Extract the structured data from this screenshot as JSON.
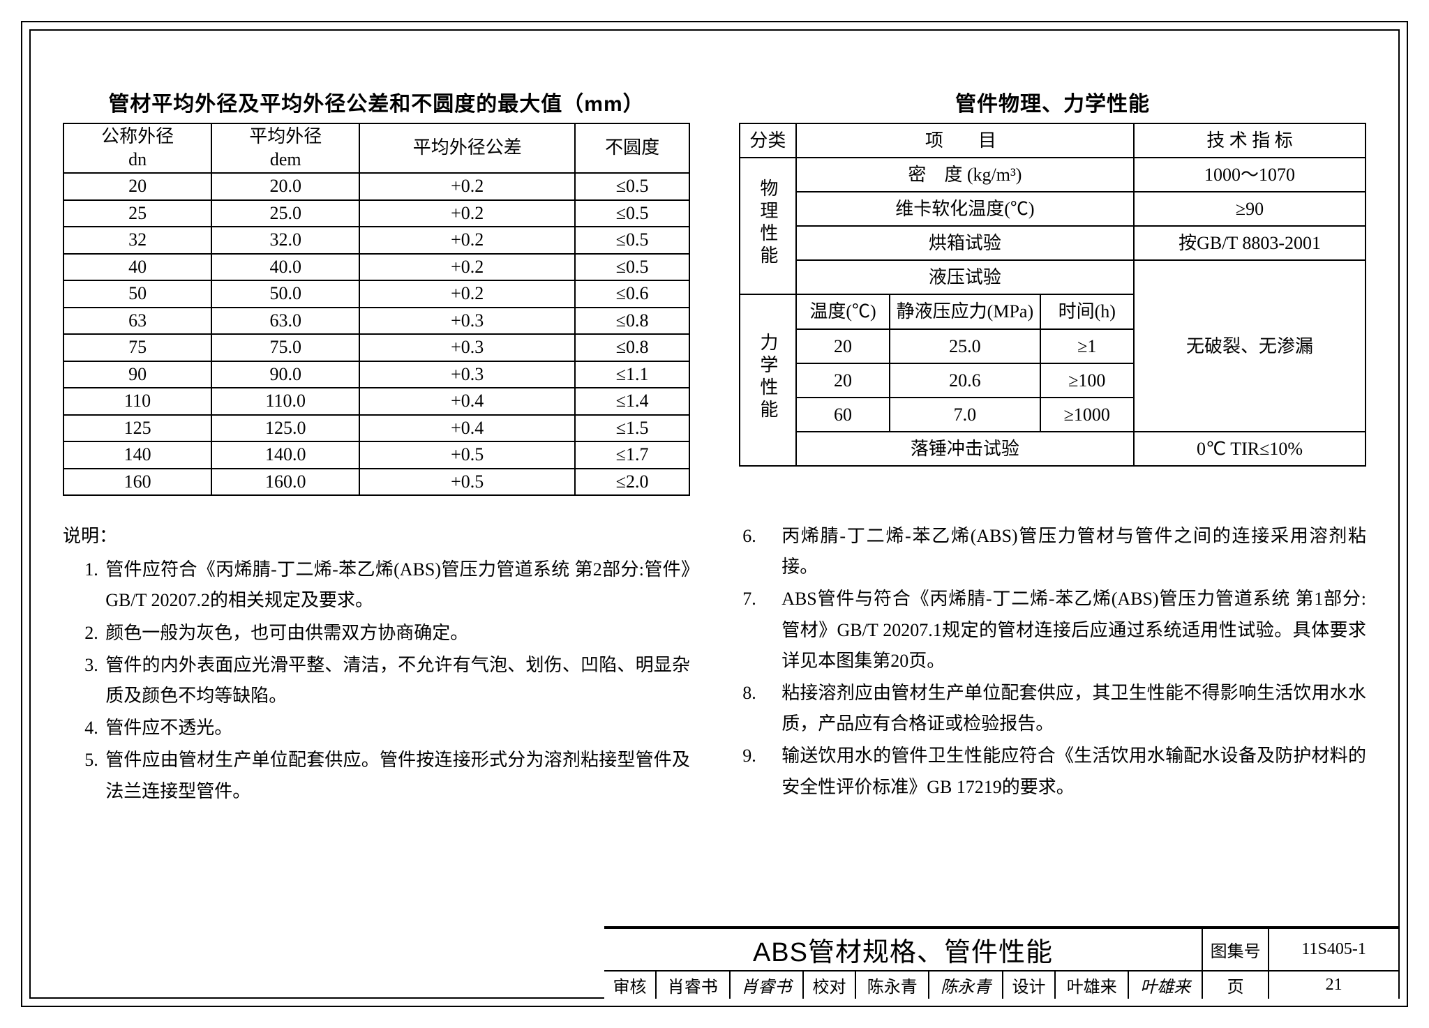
{
  "left_table": {
    "title": "管材平均外径及平均外径公差和不圆度的最大值（mm）",
    "headers": {
      "dn_line1": "公称外径",
      "dn_line2": "dn",
      "dem_line1": "平均外径",
      "dem_line2": "dem",
      "tol": "平均外径公差",
      "oval": "不圆度"
    },
    "rows": [
      {
        "dn": "20",
        "dem": "20.0",
        "tol": "+0.2",
        "oval": "≤0.5"
      },
      {
        "dn": "25",
        "dem": "25.0",
        "tol": "+0.2",
        "oval": "≤0.5"
      },
      {
        "dn": "32",
        "dem": "32.0",
        "tol": "+0.2",
        "oval": "≤0.5"
      },
      {
        "dn": "40",
        "dem": "40.0",
        "tol": "+0.2",
        "oval": "≤0.5"
      },
      {
        "dn": "50",
        "dem": "50.0",
        "tol": "+0.2",
        "oval": "≤0.6"
      },
      {
        "dn": "63",
        "dem": "63.0",
        "tol": "+0.3",
        "oval": "≤0.8"
      },
      {
        "dn": "75",
        "dem": "75.0",
        "tol": "+0.3",
        "oval": "≤0.8"
      },
      {
        "dn": "90",
        "dem": "90.0",
        "tol": "+0.3",
        "oval": "≤1.1"
      },
      {
        "dn": "110",
        "dem": "110.0",
        "tol": "+0.4",
        "oval": "≤1.4"
      },
      {
        "dn": "125",
        "dem": "125.0",
        "tol": "+0.4",
        "oval": "≤1.5"
      },
      {
        "dn": "140",
        "dem": "140.0",
        "tol": "+0.5",
        "oval": "≤1.7"
      },
      {
        "dn": "160",
        "dem": "160.0",
        "tol": "+0.5",
        "oval": "≤2.0"
      }
    ]
  },
  "right_table": {
    "title": "管件物理、力学性能",
    "headers": {
      "cat": "分类",
      "item": "项　目",
      "spec": "技 术 指 标"
    },
    "cat_phys": "物理性能",
    "cat_mech": "力学性能",
    "phys": {
      "density_label": "密　度 (kg/m³)",
      "density_val": "1000～1070",
      "vicat_label": "维卡软化温度(℃)",
      "vicat_val": "≥90",
      "oven_label": "烘箱试验",
      "oven_val": "按GB/T 8803-2001",
      "hydro_label": "液压试验"
    },
    "mech": {
      "temp_h": "温度(℃)",
      "stress_h": "静液压应力(MPa)",
      "time_h": "时间(h)",
      "rows": [
        {
          "t": "20",
          "s": "25.0",
          "h": "≥1"
        },
        {
          "t": "20",
          "s": "20.6",
          "h": "≥100"
        },
        {
          "t": "60",
          "s": "7.0",
          "h": "≥1000"
        }
      ],
      "result": "无破裂、无渗漏",
      "impact_label": "落锤冲击试验",
      "impact_val": "0℃ TIR≤10%"
    }
  },
  "notes": {
    "label": "说明：",
    "left": [
      "管件应符合《丙烯腈-丁二烯-苯乙烯(ABS)管压力管道系统 第2部分:管件》GB/T 20207.2的相关规定及要求。",
      "颜色一般为灰色，也可由供需双方协商确定。",
      "管件的内外表面应光滑平整、清洁，不允许有气泡、划伤、凹陷、明显杂质及颜色不均等缺陷。",
      "管件应不透光。",
      "管件应由管材生产单位配套供应。管件按连接形式分为溶剂粘接型管件及法兰连接型管件。"
    ],
    "right": [
      "丙烯腈-丁二烯-苯乙烯(ABS)管压力管材与管件之间的连接采用溶剂粘接。",
      "ABS管件与符合《丙烯腈-丁二烯-苯乙烯(ABS)管压力管道系统 第1部分: 管材》GB/T 20207.1规定的管材连接后应通过系统适用性试验。具体要求详见本图集第20页。",
      "粘接溶剂应由管材生产单位配套供应，其卫生性能不得影响生活饮用水水质，产品应有合格证或检验报告。",
      "输送饮用水的管件卫生性能应符合《生活饮用水输配水设备及防护材料的安全性评价标准》GB 17219的要求。"
    ]
  },
  "titleblock": {
    "main_title": "ABS管材规格、管件性能",
    "atlas_label": "图集号",
    "atlas_no": "11S405-1",
    "review_label": "审核",
    "reviewer": "肖睿书",
    "reviewer_sig": "肖睿书",
    "check_label": "校对",
    "checker": "陈永青",
    "checker_sig": "陈永青",
    "design_label": "设计",
    "designer": "叶雄来",
    "designer_sig": "叶雄来",
    "page_label": "页",
    "page_no": "21"
  }
}
